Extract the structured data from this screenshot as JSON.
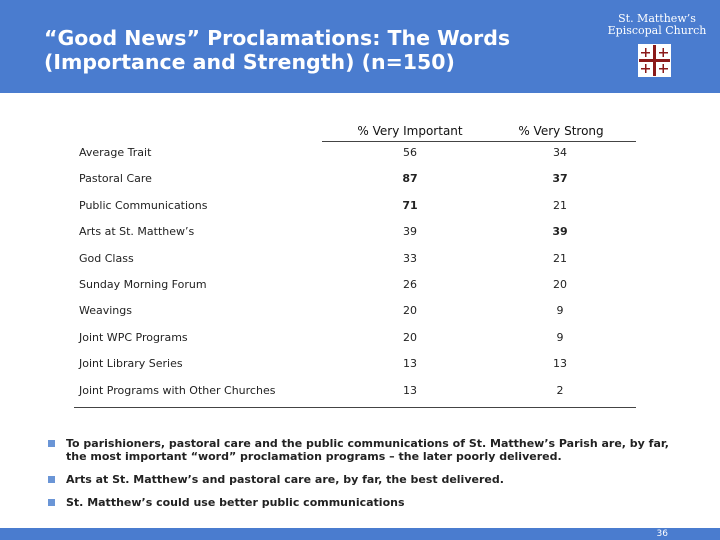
{
  "slide": {
    "title": "“Good News” Proclamations: The Words (Importance and Strength) (n=150)",
    "church_name": "St. Matthew’s Episcopal Church",
    "colors": {
      "header": "#4a7ccf",
      "bullet": "#6a95d6",
      "rule": "#444444"
    }
  },
  "table": {
    "columns": [
      "% Very Important",
      "% Very Strong"
    ],
    "rows": [
      {
        "label": "Average Trait",
        "important": "56",
        "strong": "34",
        "important_bold": false,
        "strong_bold": false
      },
      {
        "label": "Pastoral Care",
        "important": "87",
        "strong": "37",
        "important_bold": true,
        "strong_bold": true
      },
      {
        "label": "Public Communications",
        "important": "71",
        "strong": "21",
        "important_bold": true,
        "strong_bold": false
      },
      {
        "label": "Arts at St. Matthew’s",
        "important": "39",
        "strong": "39",
        "important_bold": false,
        "strong_bold": true
      },
      {
        "label": "God Class",
        "important": "33",
        "strong": "21",
        "important_bold": false,
        "strong_bold": false
      },
      {
        "label": "Sunday Morning Forum",
        "important": "26",
        "strong": "20",
        "important_bold": false,
        "strong_bold": false
      },
      {
        "label": "Weavings",
        "important": "20",
        "strong": "9",
        "important_bold": false,
        "strong_bold": false
      },
      {
        "label": "Joint WPC Programs",
        "important": "20",
        "strong": "9",
        "important_bold": false,
        "strong_bold": false
      },
      {
        "label": "Joint Library Series",
        "important": "13",
        "strong": "13",
        "important_bold": false,
        "strong_bold": false
      },
      {
        "label": "Joint Programs with Other Churches",
        "important": "13",
        "strong": "2",
        "important_bold": false,
        "strong_bold": false
      }
    ]
  },
  "bullets": [
    "To parishioners, pastoral care and the public communications of St. Matthew’s Parish are, by far, the most important “word” proclamation programs – the later poorly delivered.",
    "Arts at St. Matthew’s and pastoral care are, by far, the best delivered.",
    "St. Matthew’s could use better public communications"
  ],
  "footer": {
    "page_number": "36"
  }
}
